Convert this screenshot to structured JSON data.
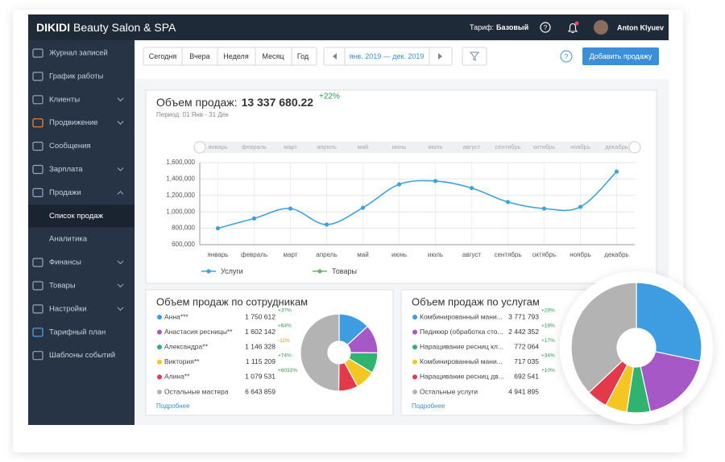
{
  "header": {
    "brand": "DIKIDI",
    "brand_suffix": "Beauty Salon & SPA",
    "tariff_label": "Тариф:",
    "tariff": "Базовый",
    "user": "Anton Klyuev"
  },
  "sidebar": {
    "items": [
      "Журнал записей",
      "График работы",
      "Клиенты",
      "Продвижение",
      "Сообщения",
      "Зарплата",
      "Продажи",
      "Список продаж",
      "Аналитика",
      "Финансы",
      "Товары",
      "Настройки",
      "Тарифный план",
      "Шаблоны событий"
    ]
  },
  "toolbar": {
    "periods": [
      "Сегодня",
      "Вчера",
      "Неделя",
      "Месяц",
      "Год"
    ],
    "date_range": "янв. 2019 — дек. 2019",
    "add_button": "Добавить продажу"
  },
  "chart_data": {
    "type": "line",
    "title": "Объем продаж:",
    "total": "13 337 680.22",
    "change": "+22%",
    "subtitle": "Период: 01 Янв - 31 Дек",
    "categories": [
      "январь",
      "февраль",
      "март",
      "апрель",
      "май",
      "июнь",
      "июль",
      "август",
      "сентябрь",
      "октябрь",
      "ноябрь",
      "декабрь"
    ],
    "series": [
      {
        "name": "Услуги",
        "color": "#3fa2d8",
        "values": [
          800000,
          920000,
          1040000,
          845000,
          1050000,
          1335000,
          1375000,
          1290000,
          1120000,
          1040000,
          1060000,
          1490000
        ]
      },
      {
        "name": "Товары",
        "color": "#6cb56c",
        "values": [
          null,
          null,
          null,
          null,
          null,
          null,
          null,
          null,
          null,
          null,
          null,
          null
        ]
      }
    ],
    "ylim": [
      600000,
      1600000
    ],
    "yticks": [
      {
        "value": 600000,
        "label": "600,000"
      },
      {
        "value": 800000,
        "label": "800,000"
      },
      {
        "value": 1000000,
        "label": "1,000,000"
      },
      {
        "value": 1200000,
        "label": "1,200,000"
      },
      {
        "value": 1400000,
        "label": "1,400,000"
      },
      {
        "value": 1600000,
        "label": "1,600,000"
      }
    ],
    "grid": true,
    "legend": "bottom"
  },
  "employees": {
    "title": "Объем продаж по сотрудникам",
    "rows": [
      {
        "name": "Анна***",
        "value": 1750612,
        "label": "1 750 612",
        "change": "+37%",
        "color": "#3d9de0"
      },
      {
        "name": "Анастасия ресницы**",
        "value": 1602142,
        "label": "1 602 142",
        "change": "+64%",
        "color": "#a658c6"
      },
      {
        "name": "Александра**",
        "value": 1146328,
        "label": "1 146 328",
        "change": "-11%",
        "color": "#2fb36f"
      },
      {
        "name": "Виктория**",
        "value": 1115209,
        "label": "1 115 209",
        "change": "+74%",
        "color": "#f3c623"
      },
      {
        "name": "Алина**",
        "value": 1079531,
        "label": "1 079 531",
        "change": "+6032%",
        "color": "#e4394b"
      },
      {
        "name": "Остальные мастера",
        "value": 6643859,
        "label": "6 643 859",
        "color": "#b3b3b3"
      }
    ],
    "more": "Подробнее"
  },
  "services": {
    "title": "Объем продаж по услугам",
    "rows": [
      {
        "name": "Комбинированный мани...",
        "value": 3771793,
        "label": "3 771 793",
        "change": "+29%",
        "color": "#3d9de0"
      },
      {
        "name": "Педикюр (обработка сто...",
        "value": 2442352,
        "label": "2 442 352",
        "change": "+18%",
        "color": "#a658c6"
      },
      {
        "name": "Наращивание ресниц кл...",
        "value": 772064,
        "label": "772 064",
        "change": "+17%",
        "color": "#2fb36f"
      },
      {
        "name": "Комбинированный мани...",
        "value": 717035,
        "label": "717 035",
        "change": "+34%",
        "color": "#f3c623"
      },
      {
        "name": "Наращивание ресниц дв...",
        "value": 692541,
        "label": "692 541",
        "change": "+10%",
        "color": "#e4394b"
      },
      {
        "name": "Остальные услуги",
        "value": 4941895,
        "label": "4 941 895",
        "color": "#b3b3b3"
      }
    ],
    "more": "Подробнее"
  }
}
